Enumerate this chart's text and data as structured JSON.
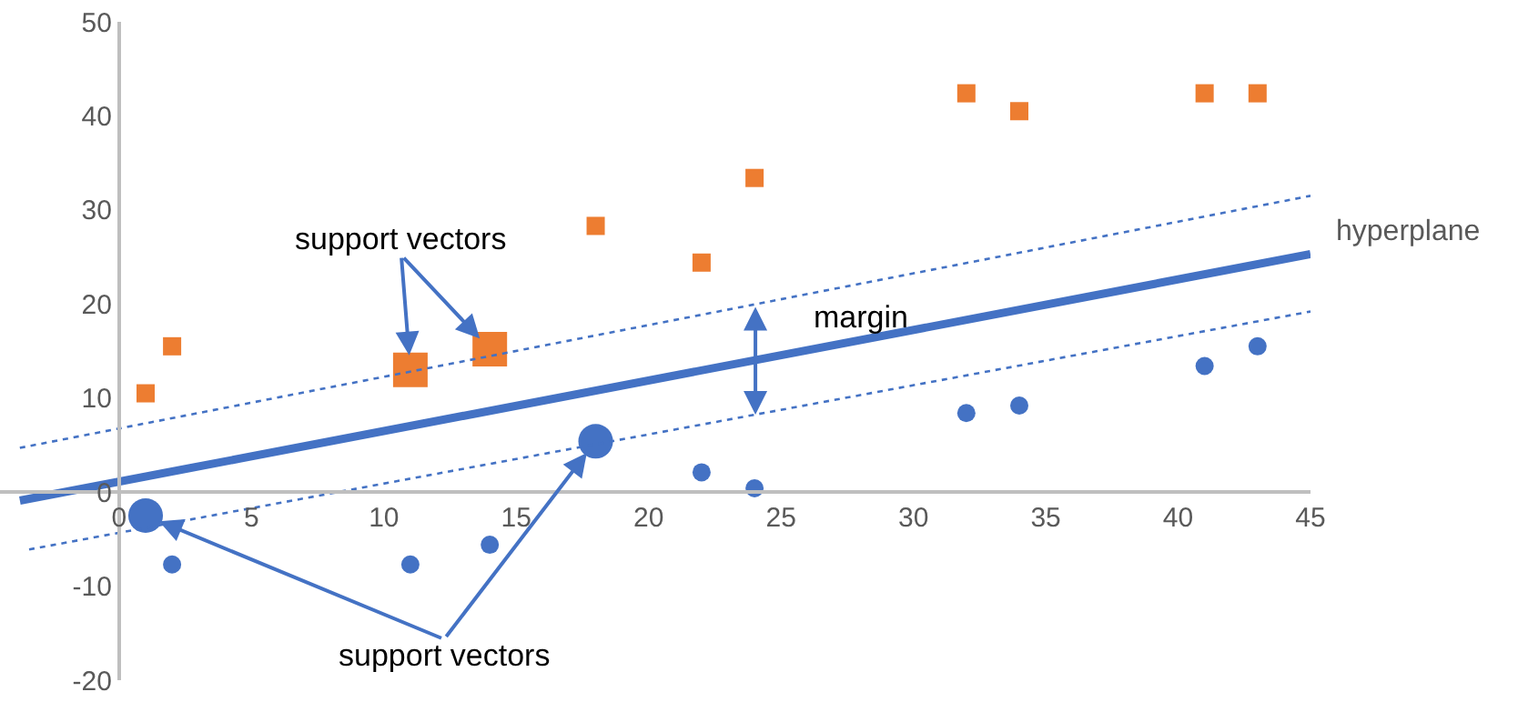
{
  "chart_data": {
    "type": "scatter",
    "xlim": [
      -4.5,
      45
    ],
    "xticks": [
      0,
      5,
      10,
      15,
      20,
      25,
      30,
      35,
      40,
      45
    ],
    "ylim": [
      -20,
      50
    ],
    "yticks": [
      -20,
      -10,
      0,
      10,
      20,
      30,
      40,
      50
    ],
    "grid": false,
    "series": [
      {
        "marker": "square",
        "color": "#ed7d31",
        "x": [
          1,
          2,
          18,
          22,
          24,
          32,
          34,
          41,
          43
        ],
        "values": [
          10.5,
          15.5,
          28.3,
          24.4,
          33.4,
          42.4,
          40.5,
          42.4,
          42.4
        ]
      },
      {
        "type": "bubble",
        "marker": "square",
        "color": "#ed7d31",
        "x": [
          11,
          14
        ],
        "values": [
          13,
          15.2
        ],
        "sizes": [
          1,
          1
        ]
      },
      {
        "marker": "circle",
        "color": "#4472c4",
        "x": [
          2,
          11,
          14,
          22,
          24,
          32,
          34,
          41,
          43
        ],
        "values": [
          -7.7,
          -7.7,
          -5.6,
          2.1,
          0.4,
          8.4,
          9.2,
          13.4,
          15.5
        ]
      },
      {
        "type": "bubble",
        "marker": "circle",
        "color": "#4472c4",
        "x": [
          1,
          18
        ],
        "values": [
          -2.5,
          5.4
        ],
        "sizes": [
          0.79,
          0.79
        ]
      },
      {
        "type": "line",
        "name": "hyperplane",
        "line_style": "solid",
        "color": "#4472c4",
        "x": [
          -3.75,
          45
        ],
        "values": [
          -0.9,
          25.3
        ]
      },
      {
        "type": "line",
        "line_style": "dotted",
        "color": "#4472c4",
        "x": [
          -3.75,
          45
        ],
        "values": [
          4.7,
          31.5
        ]
      },
      {
        "type": "line",
        "line_style": "dotted",
        "color": "#4472c4",
        "x": [
          -3.4,
          45
        ],
        "values": [
          -6.1,
          19.2
        ]
      }
    ],
    "annotations": [
      {
        "text": "support vectors",
        "x": 11,
        "y": 13
      },
      {
        "text": "support vectors",
        "x": 1,
        "y": -2.5
      },
      "margin"
    ]
  }
}
